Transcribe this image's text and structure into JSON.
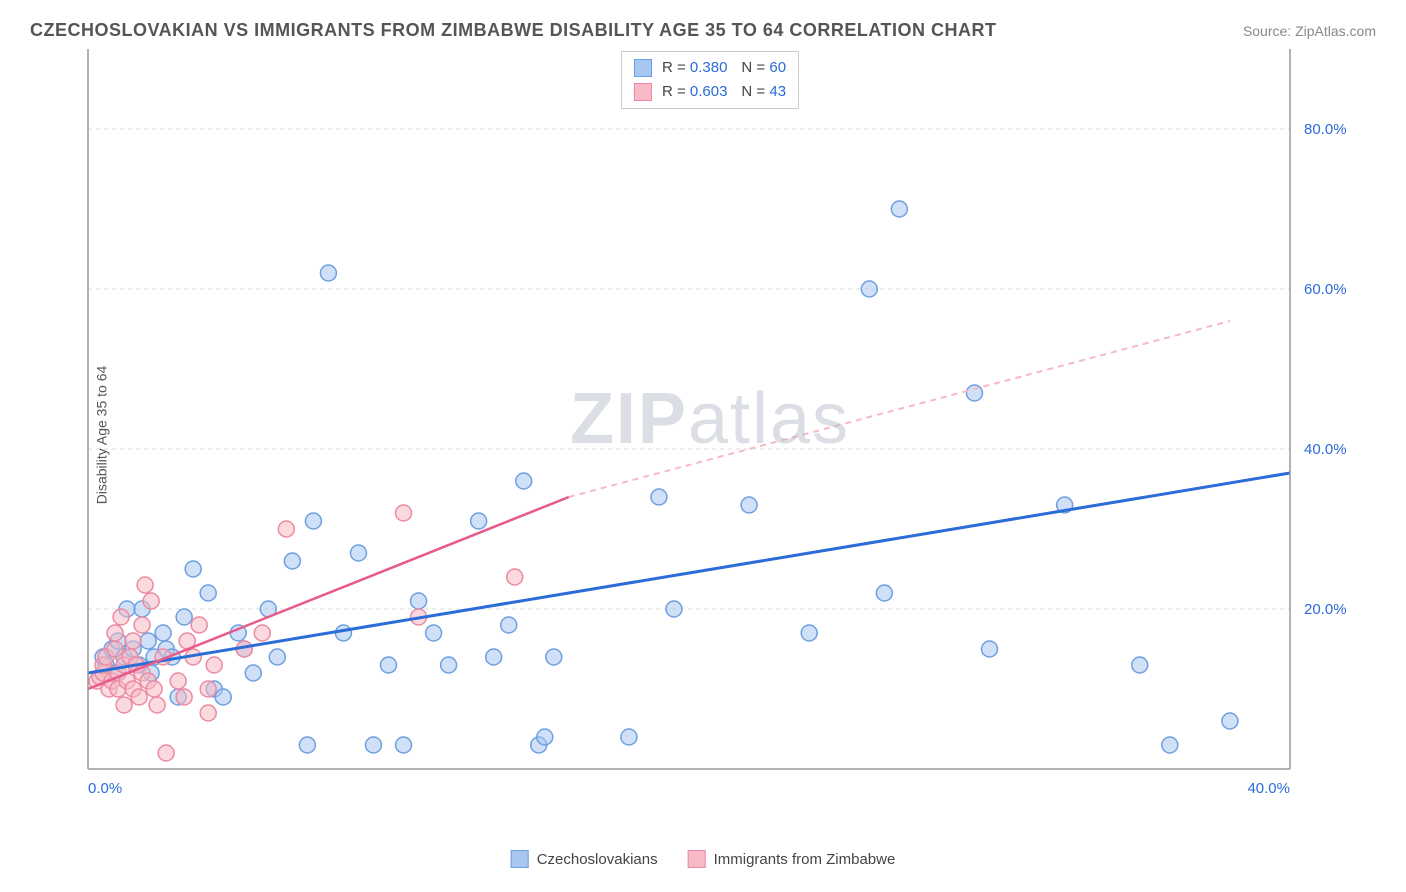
{
  "title": "CZECHOSLOVAKIAN VS IMMIGRANTS FROM ZIMBABWE DISABILITY AGE 35 TO 64 CORRELATION CHART",
  "source": "Source: ZipAtlas.com",
  "watermark": "ZIPatlas",
  "y_axis_label": "Disability Age 35 to 64",
  "chart": {
    "type": "scatter",
    "xlim": [
      0,
      40
    ],
    "ylim": [
      0,
      90
    ],
    "x_ticks": [
      {
        "v": 0,
        "label": "0.0%"
      },
      {
        "v": 40,
        "label": "40.0%"
      }
    ],
    "y_ticks": [
      {
        "v": 20,
        "label": "20.0%"
      },
      {
        "v": 40,
        "label": "40.0%"
      },
      {
        "v": 60,
        "label": "60.0%"
      },
      {
        "v": 80,
        "label": "80.0%"
      }
    ],
    "y_gridlines": [
      20,
      40,
      60,
      80
    ],
    "background": "#ffffff",
    "grid_color": "#dddddd",
    "axis_color": "#999999",
    "tick_label_color": "#2a6cd8",
    "marker_radius": 8,
    "marker_stroke_width": 1.5,
    "marker_opacity": 0.55,
    "series": [
      {
        "name": "Czechoslovakians",
        "fill": "#a7c6f0",
        "stroke": "#6e9fe0",
        "points": [
          [
            0.5,
            14
          ],
          [
            0.6,
            13
          ],
          [
            0.8,
            15
          ],
          [
            0.9,
            12
          ],
          [
            1.0,
            16
          ],
          [
            1.2,
            14
          ],
          [
            1.3,
            20
          ],
          [
            1.5,
            15
          ],
          [
            1.7,
            13
          ],
          [
            1.8,
            20
          ],
          [
            2.0,
            16
          ],
          [
            2.1,
            12
          ],
          [
            2.2,
            14
          ],
          [
            2.5,
            17
          ],
          [
            2.6,
            15
          ],
          [
            2.8,
            14
          ],
          [
            3.0,
            9
          ],
          [
            3.2,
            19
          ],
          [
            3.5,
            25
          ],
          [
            4.0,
            22
          ],
          [
            4.2,
            10
          ],
          [
            4.5,
            9
          ],
          [
            5.0,
            17
          ],
          [
            5.2,
            15
          ],
          [
            5.5,
            12
          ],
          [
            6.0,
            20
          ],
          [
            6.3,
            14
          ],
          [
            6.8,
            26
          ],
          [
            7.3,
            3
          ],
          [
            7.5,
            31
          ],
          [
            8.0,
            62
          ],
          [
            8.5,
            17
          ],
          [
            9.0,
            27
          ],
          [
            9.5,
            3
          ],
          [
            10.0,
            13
          ],
          [
            10.5,
            3
          ],
          [
            11.0,
            21
          ],
          [
            11.5,
            17
          ],
          [
            12.0,
            13
          ],
          [
            13.0,
            31
          ],
          [
            13.5,
            14
          ],
          [
            14.0,
            18
          ],
          [
            14.5,
            36
          ],
          [
            15.0,
            3
          ],
          [
            15.2,
            4
          ],
          [
            15.5,
            14
          ],
          [
            18.0,
            4
          ],
          [
            19.5,
            20
          ],
          [
            19.0,
            34
          ],
          [
            22.0,
            33
          ],
          [
            24.0,
            17
          ],
          [
            26.0,
            60
          ],
          [
            26.5,
            22
          ],
          [
            27.0,
            70
          ],
          [
            29.5,
            47
          ],
          [
            30.0,
            15
          ],
          [
            32.5,
            33
          ],
          [
            35.0,
            13
          ],
          [
            36.0,
            3
          ],
          [
            38.0,
            6
          ]
        ],
        "trend": {
          "x1": 0,
          "y1": 12,
          "x2": 40,
          "y2": 37,
          "stroke": "#2a6cd8",
          "width": 3,
          "dash": ""
        }
      },
      {
        "name": "Immigrants from Zimbabwe",
        "fill": "#f6b9c5",
        "stroke": "#ec8aa2",
        "points": [
          [
            0.3,
            11
          ],
          [
            0.4,
            11.5
          ],
          [
            0.5,
            12
          ],
          [
            0.5,
            13
          ],
          [
            0.6,
            14
          ],
          [
            0.7,
            10
          ],
          [
            0.8,
            11
          ],
          [
            0.9,
            15
          ],
          [
            0.9,
            17
          ],
          [
            1.0,
            12
          ],
          [
            1.0,
            10
          ],
          [
            1.1,
            19
          ],
          [
            1.2,
            13
          ],
          [
            1.2,
            8
          ],
          [
            1.3,
            11
          ],
          [
            1.4,
            14
          ],
          [
            1.5,
            16
          ],
          [
            1.5,
            10
          ],
          [
            1.6,
            13
          ],
          [
            1.7,
            9
          ],
          [
            1.8,
            12
          ],
          [
            1.8,
            18
          ],
          [
            1.9,
            23
          ],
          [
            2.0,
            11
          ],
          [
            2.1,
            21
          ],
          [
            2.2,
            10
          ],
          [
            2.3,
            8
          ],
          [
            2.5,
            14
          ],
          [
            2.6,
            2
          ],
          [
            3.0,
            11
          ],
          [
            3.2,
            9
          ],
          [
            3.3,
            16
          ],
          [
            3.5,
            14
          ],
          [
            3.7,
            18
          ],
          [
            4.0,
            7
          ],
          [
            4.0,
            10
          ],
          [
            4.2,
            13
          ],
          [
            5.2,
            15
          ],
          [
            5.8,
            17
          ],
          [
            6.6,
            30
          ],
          [
            10.5,
            32
          ],
          [
            11.0,
            19
          ],
          [
            14.2,
            24
          ]
        ],
        "trend_solid": {
          "x1": 0,
          "y1": 10,
          "x2": 16,
          "y2": 34,
          "stroke": "#e85a8a",
          "width": 2.5
        },
        "trend_dash": {
          "x1": 16,
          "y1": 34,
          "x2": 38,
          "y2": 56,
          "stroke": "#f6b9c5",
          "width": 2,
          "dash": "6 5"
        }
      }
    ]
  },
  "top_legend": [
    {
      "swatch_fill": "#a7c6f0",
      "swatch_stroke": "#6e9fe0",
      "r": "0.380",
      "n": "60"
    },
    {
      "swatch_fill": "#f6b9c5",
      "swatch_stroke": "#ec8aa2",
      "r": "0.603",
      "n": "43"
    }
  ],
  "bottom_legend": [
    {
      "label": "Czechoslovakians",
      "fill": "#a7c6f0",
      "stroke": "#6e9fe0"
    },
    {
      "label": "Immigrants from Zimbabwe",
      "fill": "#f6b9c5",
      "stroke": "#ec8aa2"
    }
  ]
}
